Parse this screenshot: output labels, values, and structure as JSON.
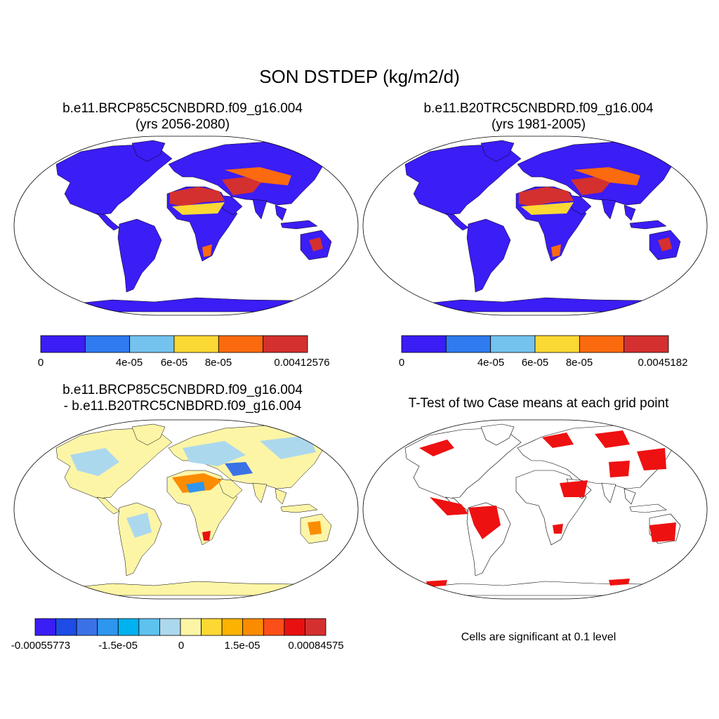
{
  "figure": {
    "title": "SON DSTDEP (kg/m2/d)",
    "panels": [
      {
        "id": "case",
        "title_line1": "b.e11.BRCP85C5CNBDRD.f09_g16.004",
        "title_line2": "(yrs 2056-2080)",
        "colorbar": {
          "colors": [
            "#3b1df5",
            "#2f7bef",
            "#74c3ef",
            "#fcd834",
            "#fb6a0e",
            "#d43030"
          ],
          "labels": [
            "0",
            "4e-05",
            "6e-05",
            "8e-05",
            "0.00412576"
          ]
        }
      },
      {
        "id": "control",
        "title_line1": "b.e11.B20TRC5CNBDRD.f09_g16.004",
        "title_line2": "(yrs 1981-2005)",
        "colorbar": {
          "colors": [
            "#3b1df5",
            "#2f7bef",
            "#74c3ef",
            "#fcd834",
            "#fb6a0e",
            "#d43030"
          ],
          "labels": [
            "0",
            "4e-05",
            "6e-05",
            "8e-05",
            "0.0045182"
          ]
        }
      },
      {
        "id": "difference",
        "title_line1": "b.e11.BRCP85C5CNBDRD.f09_g16.004",
        "title_line2": "- b.e11.B20TRC5CNBDRD.f09_g16.004",
        "colorbar": {
          "colors": [
            "#3b1df5",
            "#1d4ce6",
            "#3a72e6",
            "#2d96ef",
            "#00b2ef",
            "#5ec2ef",
            "#acd8ee",
            "#fdf5a6",
            "#fcd834",
            "#fbb200",
            "#fb8c00",
            "#fb4e18",
            "#e81010",
            "#d43030"
          ],
          "labels": [
            "-0.00055773",
            "-1.5e-05",
            "0",
            "1.5e-05",
            "0.00084575"
          ]
        }
      },
      {
        "id": "ttest",
        "title_line1": "T-Test of two Case means at each grid point",
        "note": "Cells are significant at 0.1 level",
        "sig_color": "#ee1111"
      }
    ]
  }
}
